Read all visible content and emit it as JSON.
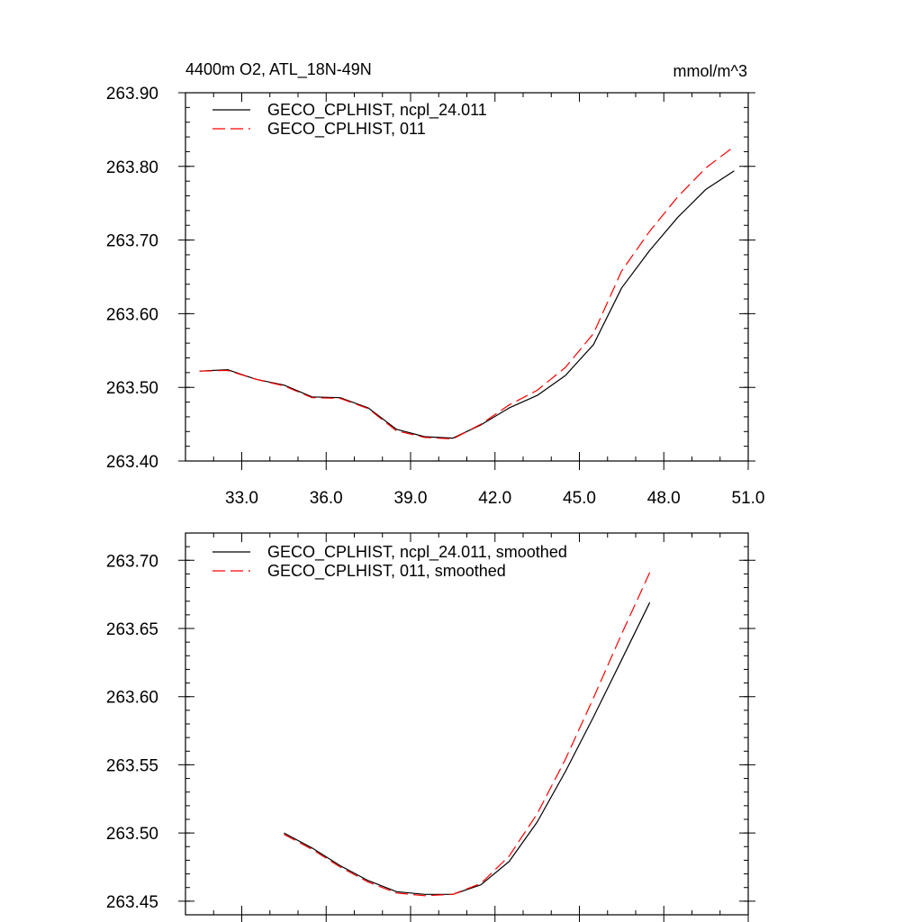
{
  "chart_data": [
    {
      "type": "line",
      "title_left": "4400m O2, ATL_18N-49N",
      "title_right": "mmol/m^3",
      "xlim": [
        31.0,
        51.0
      ],
      "ylim": [
        263.4,
        263.9
      ],
      "xticks": [
        "33.0",
        "36.0",
        "39.0",
        "42.0",
        "45.0",
        "48.0",
        "51.0"
      ],
      "yticks": [
        "263.40",
        "263.50",
        "263.60",
        "263.70",
        "263.80",
        "263.90"
      ],
      "x": [
        31.5,
        32.5,
        33.5,
        34.5,
        35.5,
        36.5,
        37.5,
        38.5,
        39.5,
        40.5,
        41.5,
        42.5,
        43.5,
        44.5,
        45.5,
        46.5,
        47.5,
        48.5,
        49.5,
        50.5
      ],
      "series": [
        {
          "name": "GECO_CPLHIST, ncpl_24.011",
          "color": "#000000",
          "dash": "solid",
          "values": [
            263.522,
            263.524,
            263.511,
            263.503,
            263.487,
            263.486,
            263.472,
            263.443,
            263.433,
            263.431,
            263.449,
            263.472,
            263.489,
            263.516,
            263.558,
            263.635,
            263.686,
            263.731,
            263.769,
            263.794
          ]
        },
        {
          "name": "GECO_CPLHIST, 011",
          "color": "#ff0000",
          "dash": "dashed",
          "values": [
            263.522,
            263.523,
            263.511,
            263.502,
            263.486,
            263.485,
            263.471,
            263.441,
            263.432,
            263.43,
            263.45,
            263.476,
            263.496,
            263.527,
            263.573,
            263.658,
            263.712,
            263.759,
            263.798,
            263.827
          ]
        }
      ]
    },
    {
      "type": "line",
      "xlim": [
        31.0,
        51.0
      ],
      "ylim": [
        263.44,
        263.72
      ],
      "yticks": [
        "263.45",
        "263.50",
        "263.55",
        "263.60",
        "263.65",
        "263.70"
      ],
      "x": [
        34.5,
        35.5,
        36.5,
        37.5,
        38.5,
        39.5,
        40.5,
        41.5,
        42.5,
        43.5,
        44.5,
        45.5,
        46.5,
        47.5
      ],
      "series": [
        {
          "name": "GECO_CPLHIST, ncpl_24.011, smoothed",
          "color": "#000000",
          "dash": "solid",
          "values": [
            263.5,
            263.489,
            263.476,
            263.465,
            263.457,
            263.455,
            263.455,
            263.462,
            263.479,
            263.508,
            263.545,
            263.585,
            263.627,
            263.669
          ]
        },
        {
          "name": "GECO_CPLHIST, 011, smoothed",
          "color": "#ff0000",
          "dash": "dashed",
          "values": [
            263.499,
            263.488,
            263.475,
            263.464,
            263.456,
            263.454,
            263.455,
            263.463,
            263.483,
            263.514,
            263.554,
            263.599,
            263.646,
            263.691
          ]
        }
      ]
    }
  ]
}
